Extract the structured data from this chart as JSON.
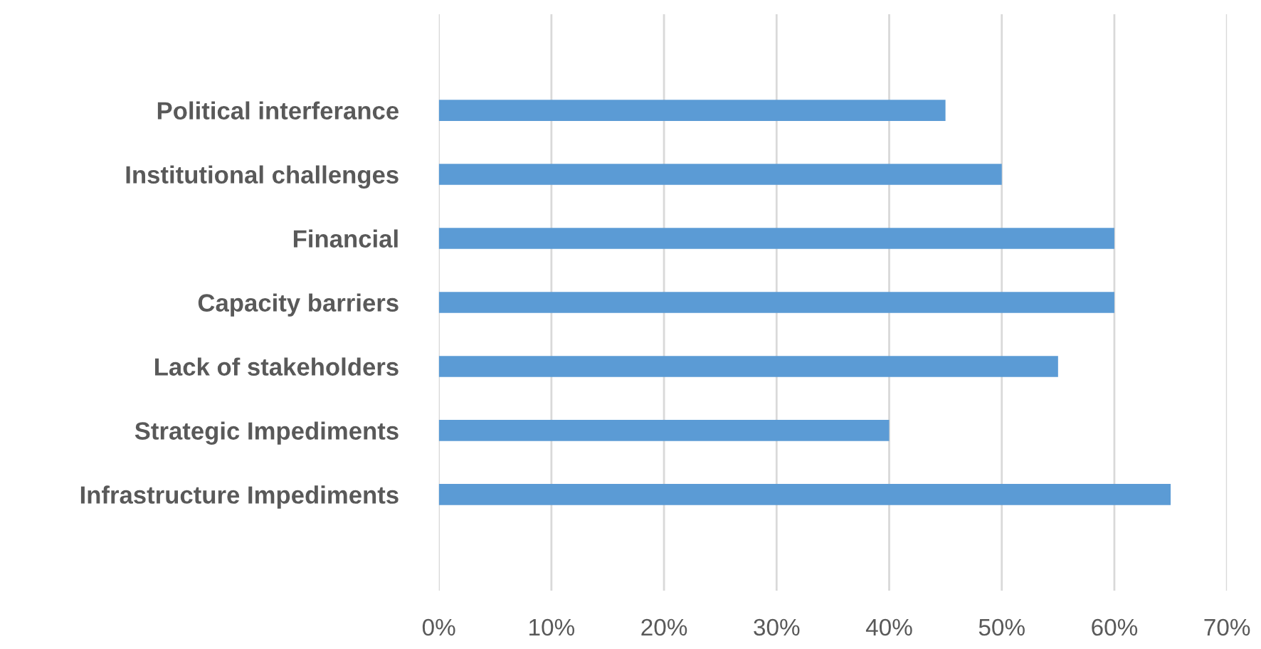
{
  "chart_data": {
    "type": "bar",
    "orientation": "horizontal",
    "categories": [
      "Political interferance",
      "Institutional challenges",
      "Financial",
      "Capacity barriers",
      "Lack of stakeholders",
      "Strategic Impediments",
      "Infrastructure Impediments"
    ],
    "values": [
      45,
      50,
      60,
      60,
      55,
      40,
      65
    ],
    "color": "#5b9bd5",
    "xlim": [
      0,
      70
    ],
    "xticks": [
      {
        "value": 0,
        "label": "0%"
      },
      {
        "value": 10,
        "label": "10%"
      },
      {
        "value": 20,
        "label": "20%"
      },
      {
        "value": 30,
        "label": "30%"
      },
      {
        "value": 40,
        "label": "40%"
      },
      {
        "value": 50,
        "label": "50%"
      },
      {
        "value": 60,
        "label": "60%"
      },
      {
        "value": 70,
        "label": "70%"
      }
    ],
    "grid": "x"
  }
}
